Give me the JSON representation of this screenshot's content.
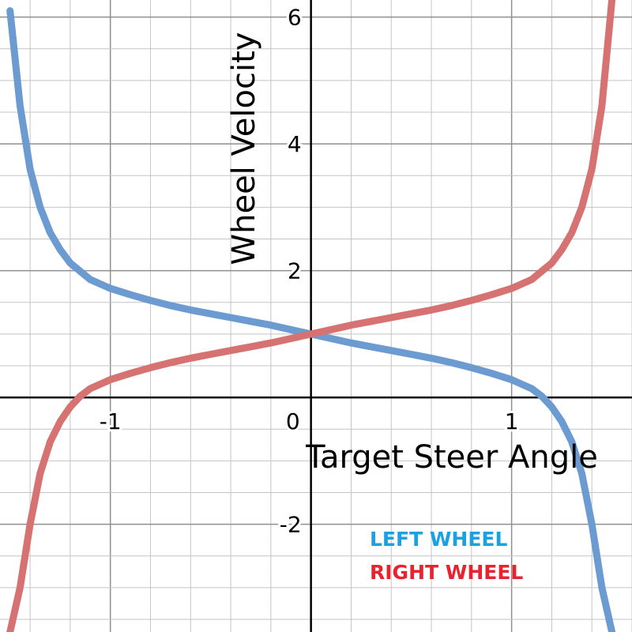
{
  "chart_data": {
    "type": "line",
    "xlabel": "Target Steer Angle",
    "ylabel": "Wheel Velocity",
    "xlim": [
      -1.55,
      1.6
    ],
    "ylim": [
      -3.7,
      6.27
    ],
    "grid": true,
    "x_ticks": [
      {
        "value": -1,
        "label": "-1"
      },
      {
        "value": 0,
        "label": "0"
      },
      {
        "value": 1,
        "label": "1"
      }
    ],
    "y_ticks": [
      {
        "value": -2,
        "label": "-2"
      },
      {
        "value": 2,
        "label": "2"
      },
      {
        "value": 4,
        "label": "4"
      },
      {
        "value": 6,
        "label": "6"
      }
    ],
    "legend_placement": "bottom-right",
    "series": [
      {
        "name": "LEFT WHEEL",
        "color": "#6b9bd1",
        "label_color": "#1ba1e2",
        "points": [
          [
            -1.5,
            6.1
          ],
          [
            -1.45,
            4.6
          ],
          [
            -1.4,
            3.6
          ],
          [
            -1.35,
            3.0
          ],
          [
            -1.3,
            2.6
          ],
          [
            -1.25,
            2.33
          ],
          [
            -1.2,
            2.12
          ],
          [
            -1.1,
            1.86
          ],
          [
            -1.0,
            1.72
          ],
          [
            -0.9,
            1.62
          ],
          [
            -0.8,
            1.53
          ],
          [
            -0.7,
            1.45
          ],
          [
            -0.6,
            1.38
          ],
          [
            -0.5,
            1.32
          ],
          [
            -0.4,
            1.26
          ],
          [
            -0.3,
            1.2
          ],
          [
            -0.2,
            1.14
          ],
          [
            -0.1,
            1.07
          ],
          [
            0.0,
            1.0
          ],
          [
            0.1,
            0.93
          ],
          [
            0.2,
            0.86
          ],
          [
            0.3,
            0.8
          ],
          [
            0.4,
            0.74
          ],
          [
            0.5,
            0.68
          ],
          [
            0.6,
            0.62
          ],
          [
            0.7,
            0.55
          ],
          [
            0.8,
            0.47
          ],
          [
            0.9,
            0.38
          ],
          [
            1.0,
            0.28
          ],
          [
            1.05,
            0.21
          ],
          [
            1.1,
            0.14
          ],
          [
            1.15,
            0.02
          ],
          [
            1.2,
            -0.15
          ],
          [
            1.25,
            -0.38
          ],
          [
            1.3,
            -0.7
          ],
          [
            1.35,
            -1.2
          ],
          [
            1.4,
            -2.0
          ],
          [
            1.45,
            -3.0
          ],
          [
            1.5,
            -3.7
          ]
        ]
      },
      {
        "name": "RIGHT WHEEL",
        "color": "#d77272",
        "label_color": "#e8232f",
        "points": [
          [
            -1.5,
            -3.7
          ],
          [
            -1.45,
            -3.0
          ],
          [
            -1.4,
            -2.0
          ],
          [
            -1.35,
            -1.2
          ],
          [
            -1.3,
            -0.7
          ],
          [
            -1.25,
            -0.38
          ],
          [
            -1.2,
            -0.15
          ],
          [
            -1.15,
            0.02
          ],
          [
            -1.1,
            0.14
          ],
          [
            -1.05,
            0.21
          ],
          [
            -1.0,
            0.28
          ],
          [
            -0.9,
            0.38
          ],
          [
            -0.8,
            0.47
          ],
          [
            -0.7,
            0.55
          ],
          [
            -0.6,
            0.62
          ],
          [
            -0.5,
            0.68
          ],
          [
            -0.4,
            0.74
          ],
          [
            -0.3,
            0.8
          ],
          [
            -0.2,
            0.86
          ],
          [
            -0.1,
            0.93
          ],
          [
            0.0,
            1.0
          ],
          [
            0.1,
            1.07
          ],
          [
            0.2,
            1.14
          ],
          [
            0.3,
            1.2
          ],
          [
            0.4,
            1.26
          ],
          [
            0.5,
            1.32
          ],
          [
            0.6,
            1.38
          ],
          [
            0.7,
            1.45
          ],
          [
            0.8,
            1.53
          ],
          [
            0.9,
            1.62
          ],
          [
            1.0,
            1.72
          ],
          [
            1.1,
            1.86
          ],
          [
            1.2,
            2.12
          ],
          [
            1.25,
            2.33
          ],
          [
            1.3,
            2.6
          ],
          [
            1.35,
            3.0
          ],
          [
            1.4,
            3.6
          ],
          [
            1.45,
            4.6
          ],
          [
            1.5,
            6.27
          ]
        ]
      }
    ]
  }
}
